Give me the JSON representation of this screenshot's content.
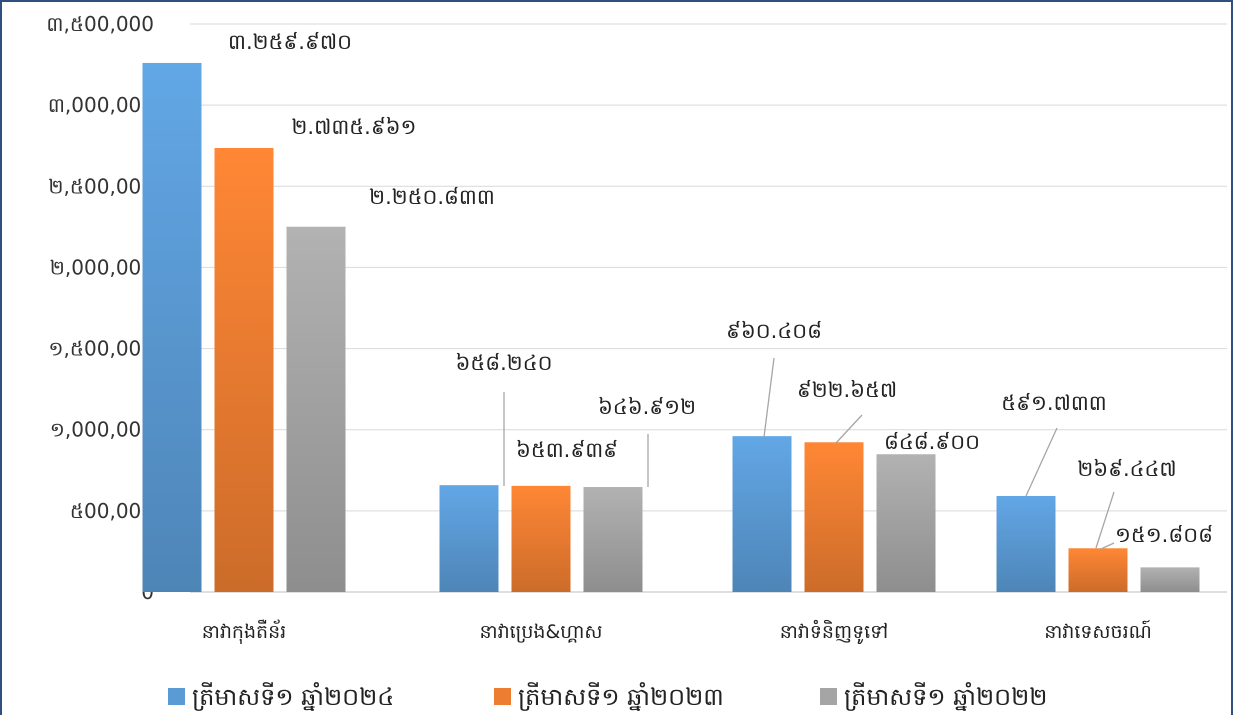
{
  "chart_data": {
    "type": "bar",
    "categories": [
      "នាវាកុងតឺន័រ",
      "នាវាប្រេង&ហ្គាស",
      "នាវាទំនិញទូទៅ",
      "នាវាទេសចរណ៍"
    ],
    "series": [
      {
        "name": "ត្រីមាសទី១ ឆ្នាំ២០២៤",
        "color": "#5b9bd5",
        "values": [
          3259970,
          658240,
          960408,
          591733
        ],
        "labels": [
          "៣.២៥៩.៩៧០",
          "៦៥៨.២៤០",
          "៩៦០.៤០៨",
          "៥៩១.៧៣៣"
        ]
      },
      {
        "name": "ត្រីមាសទី១ ឆ្នាំ២០២៣",
        "color": "#ed7d31",
        "values": [
          2735961,
          653939,
          922657,
          269447
        ],
        "labels": [
          "២.៧៣៥.៩៦១",
          "៦៥៣.៩៣៩",
          "៩២២.៦៥៧",
          "២៦៩.៤៤៧"
        ]
      },
      {
        "name": "ត្រីមាសទី១ ឆ្នាំ២០២២",
        "color": "#a5a5a5",
        "values": [
          2250833,
          646912,
          848900,
          151808
        ],
        "labels": [
          "២.២៥០.៨៣៣",
          "៦៤៦.៩១២",
          "៨៤៨.៩០០",
          "១៥១.៨០៨"
        ]
      }
    ],
    "yticks": [
      0,
      500000,
      1000000,
      1500000,
      2000000,
      2500000,
      3000000,
      3500000
    ],
    "ytick_labels": [
      "0",
      "៥00,000",
      "១,000,000",
      "១,៥00,000",
      "២,000,000",
      "២,៥00,000",
      "៣,000,000",
      "៣,៥00,000"
    ],
    "ylim": [
      0,
      3500000
    ],
    "grid": true,
    "legend": "bottom",
    "title": "",
    "xlabel": "",
    "ylabel": ""
  }
}
